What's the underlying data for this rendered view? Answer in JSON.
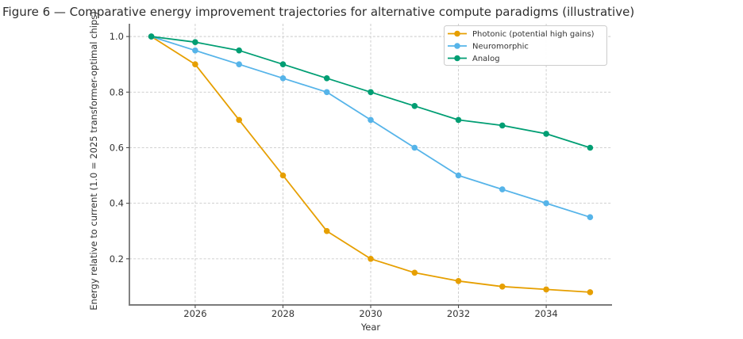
{
  "chart_data": {
    "type": "line",
    "title": "Figure 6 — Comparative energy improvement trajectories for alternative compute paradigms (illustrative)",
    "xlabel": "Year",
    "ylabel": "Energy relative to current (1.0 = 2025 transformer-optimal chips)",
    "x": [
      2025,
      2026,
      2027,
      2028,
      2029,
      2030,
      2031,
      2032,
      2033,
      2034,
      2035
    ],
    "series": [
      {
        "name": "Photonic (potential high gains)",
        "color": "#E69F00",
        "values": [
          1.0,
          0.9,
          0.7,
          0.5,
          0.3,
          0.2,
          0.15,
          0.12,
          0.1,
          0.09,
          0.08
        ]
      },
      {
        "name": "Neuromorphic",
        "color": "#56B4E9",
        "values": [
          1.0,
          0.95,
          0.9,
          0.85,
          0.8,
          0.7,
          0.6,
          0.5,
          0.45,
          0.4,
          0.35
        ]
      },
      {
        "name": "Analog",
        "color": "#009E73",
        "values": [
          1.0,
          0.98,
          0.95,
          0.9,
          0.85,
          0.8,
          0.75,
          0.7,
          0.68,
          0.65,
          0.6
        ]
      }
    ],
    "x_ticks": [
      2026,
      2028,
      2030,
      2032,
      2034
    ],
    "y_ticks": [
      0.2,
      0.4,
      0.6,
      0.8,
      1.0
    ],
    "xlim": [
      2024.5,
      2035.5
    ],
    "ylim": [
      0.034,
      1.046
    ],
    "grid": true,
    "grid_style": "dashed",
    "legend_position": "upper right",
    "colors": {
      "grid": "#c9c9c9",
      "spine_left": "#4d4d4d",
      "spine_bottom": "#7a7a7a",
      "tick_label": "#333333",
      "title": "#2e2e2e",
      "legend_border": "#cccccc",
      "legend_background": "#ffffff"
    }
  }
}
